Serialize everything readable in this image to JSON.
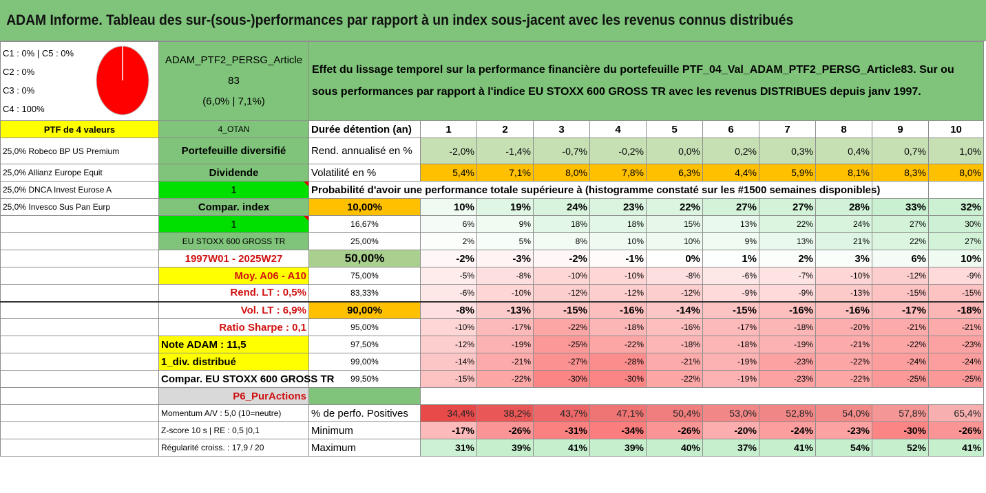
{
  "title": "ADAM Informe. Tableau des sur-(sous-)performances par rapport à un index sous-jacent avec les revenus connus distribués",
  "classes": [
    "C1 : 0% | C5 : 0%",
    "C2 : 0%",
    "C3 : 0%",
    "C4 : 100%"
  ],
  "portfolio": {
    "name_line1": "ADAM_PTF2_PERSG_Article",
    "name_line2": "83",
    "name_line3": "(6,0% | 7,1%)",
    "description": "Effet du lissage temporel sur la performance financière du portefeuille PTF_04_Val_ADAM_PTF2_PERSG_Article83. Sur ou sous performances par rapport à l'indice EU STOXX 600 GROSS TR avec les revenus DISTRIBUES depuis janv 1997."
  },
  "left_col": [
    "PTF de 4 valeurs",
    "25,0% Robeco BP US Premium",
    "25,0% Allianz Europe Equit",
    "25,0% DNCA Invest Eurose A",
    "25,0% Invesco Sus Pan Eurp"
  ],
  "mid_col": {
    "otan": "4_OTAN",
    "diversified": "Portefeuille diversifié",
    "dividend": "Dividende",
    "one_a": "1",
    "compar_index": "Compar. index",
    "one_b": "1",
    "index_name": "EU STOXX 600 GROSS TR",
    "period": "1997W01 - 2025W27",
    "moy": "Moy. A06 - A10",
    "rend_lt": "Rend. LT : 0,5%",
    "vol_lt": "Vol. LT : 6,9%",
    "sharpe": "Ratio Sharpe : 0,1",
    "note": "Note ADAM : 11,5",
    "div": "1_div. distribué",
    "compar_full": "Compar. EU STOXX 600 GROSS TR",
    "p6": "P6_PurActions",
    "momentum": "Momentum A/V : 5,0 (10=neutre)",
    "zscore": "Z-score 10 s | RE : 0,5 |0,1",
    "regularite": "Régularité croiss. : 17,9 / 20"
  },
  "labels": {
    "duree": "Durée détention (an)",
    "rend": "Rend. annualisé en %",
    "vol": "Volatilité en %",
    "proba": "Probabilité d'avoir une performance totale supérieure à (histogramme constaté sur les #1500 semaines disponibles)",
    "pos": "% de perfo. Positives",
    "min": "Minimum",
    "max": "Maximum"
  },
  "years": [
    "1",
    "2",
    "3",
    "4",
    "5",
    "6",
    "7",
    "8",
    "9",
    "10"
  ],
  "rend": [
    "-2,0%",
    "-1,4%",
    "-0,7%",
    "-0,2%",
    "0,0%",
    "0,2%",
    "0,3%",
    "0,4%",
    "0,7%",
    "1,0%"
  ],
  "vol": [
    "5,4%",
    "7,1%",
    "8,0%",
    "7,8%",
    "6,3%",
    "4,4%",
    "5,9%",
    "8,1%",
    "8,3%",
    "8,0%"
  ],
  "proba_rows": [
    {
      "p": "10,00%",
      "v": [
        "10%",
        "19%",
        "24%",
        "23%",
        "22%",
        "27%",
        "27%",
        "28%",
        "33%",
        "32%"
      ]
    },
    {
      "p": "16,67%",
      "v": [
        "6%",
        "9%",
        "18%",
        "18%",
        "15%",
        "13%",
        "22%",
        "24%",
        "27%",
        "30%"
      ]
    },
    {
      "p": "25,00%",
      "v": [
        "2%",
        "5%",
        "8%",
        "10%",
        "10%",
        "9%",
        "13%",
        "21%",
        "22%",
        "27%"
      ]
    },
    {
      "p": "50,00%",
      "v": [
        "-2%",
        "-3%",
        "-2%",
        "-1%",
        "0%",
        "1%",
        "2%",
        "3%",
        "6%",
        "10%"
      ]
    },
    {
      "p": "75,00%",
      "v": [
        "-5%",
        "-8%",
        "-10%",
        "-10%",
        "-8%",
        "-6%",
        "-7%",
        "-10%",
        "-12%",
        "-9%"
      ]
    },
    {
      "p": "83,33%",
      "v": [
        "-6%",
        "-10%",
        "-12%",
        "-12%",
        "-12%",
        "-9%",
        "-9%",
        "-13%",
        "-15%",
        "-15%"
      ]
    },
    {
      "p": "90,00%",
      "v": [
        "-8%",
        "-13%",
        "-15%",
        "-16%",
        "-14%",
        "-15%",
        "-16%",
        "-16%",
        "-17%",
        "-18%"
      ]
    },
    {
      "p": "95,00%",
      "v": [
        "-10%",
        "-17%",
        "-22%",
        "-18%",
        "-16%",
        "-17%",
        "-18%",
        "-20%",
        "-21%",
        "-21%"
      ]
    },
    {
      "p": "97,50%",
      "v": [
        "-12%",
        "-19%",
        "-25%",
        "-22%",
        "-18%",
        "-18%",
        "-19%",
        "-21%",
        "-22%",
        "-23%"
      ]
    },
    {
      "p": "99,00%",
      "v": [
        "-14%",
        "-21%",
        "-27%",
        "-28%",
        "-21%",
        "-19%",
        "-23%",
        "-22%",
        "-24%",
        "-24%"
      ]
    },
    {
      "p": "99,50%",
      "v": [
        "-15%",
        "-22%",
        "-30%",
        "-30%",
        "-22%",
        "-19%",
        "-23%",
        "-22%",
        "-25%",
        "-25%"
      ]
    }
  ],
  "pos": [
    "34,4%",
    "38,2%",
    "43,7%",
    "47,1%",
    "50,4%",
    "53,0%",
    "52,8%",
    "54,0%",
    "57,8%",
    "65,4%"
  ],
  "min": [
    "-17%",
    "-26%",
    "-31%",
    "-34%",
    "-26%",
    "-20%",
    "-24%",
    "-23%",
    "-30%",
    "-26%"
  ],
  "max": [
    "31%",
    "39%",
    "41%",
    "39%",
    "40%",
    "37%",
    "41%",
    "54%",
    "52%",
    "41%"
  ],
  "colors": {
    "header_green": "#7fc47a",
    "yellow": "#ffff00",
    "orange": "#ffc000",
    "bright_green": "#00e000",
    "pie_red": "#ff0000"
  }
}
